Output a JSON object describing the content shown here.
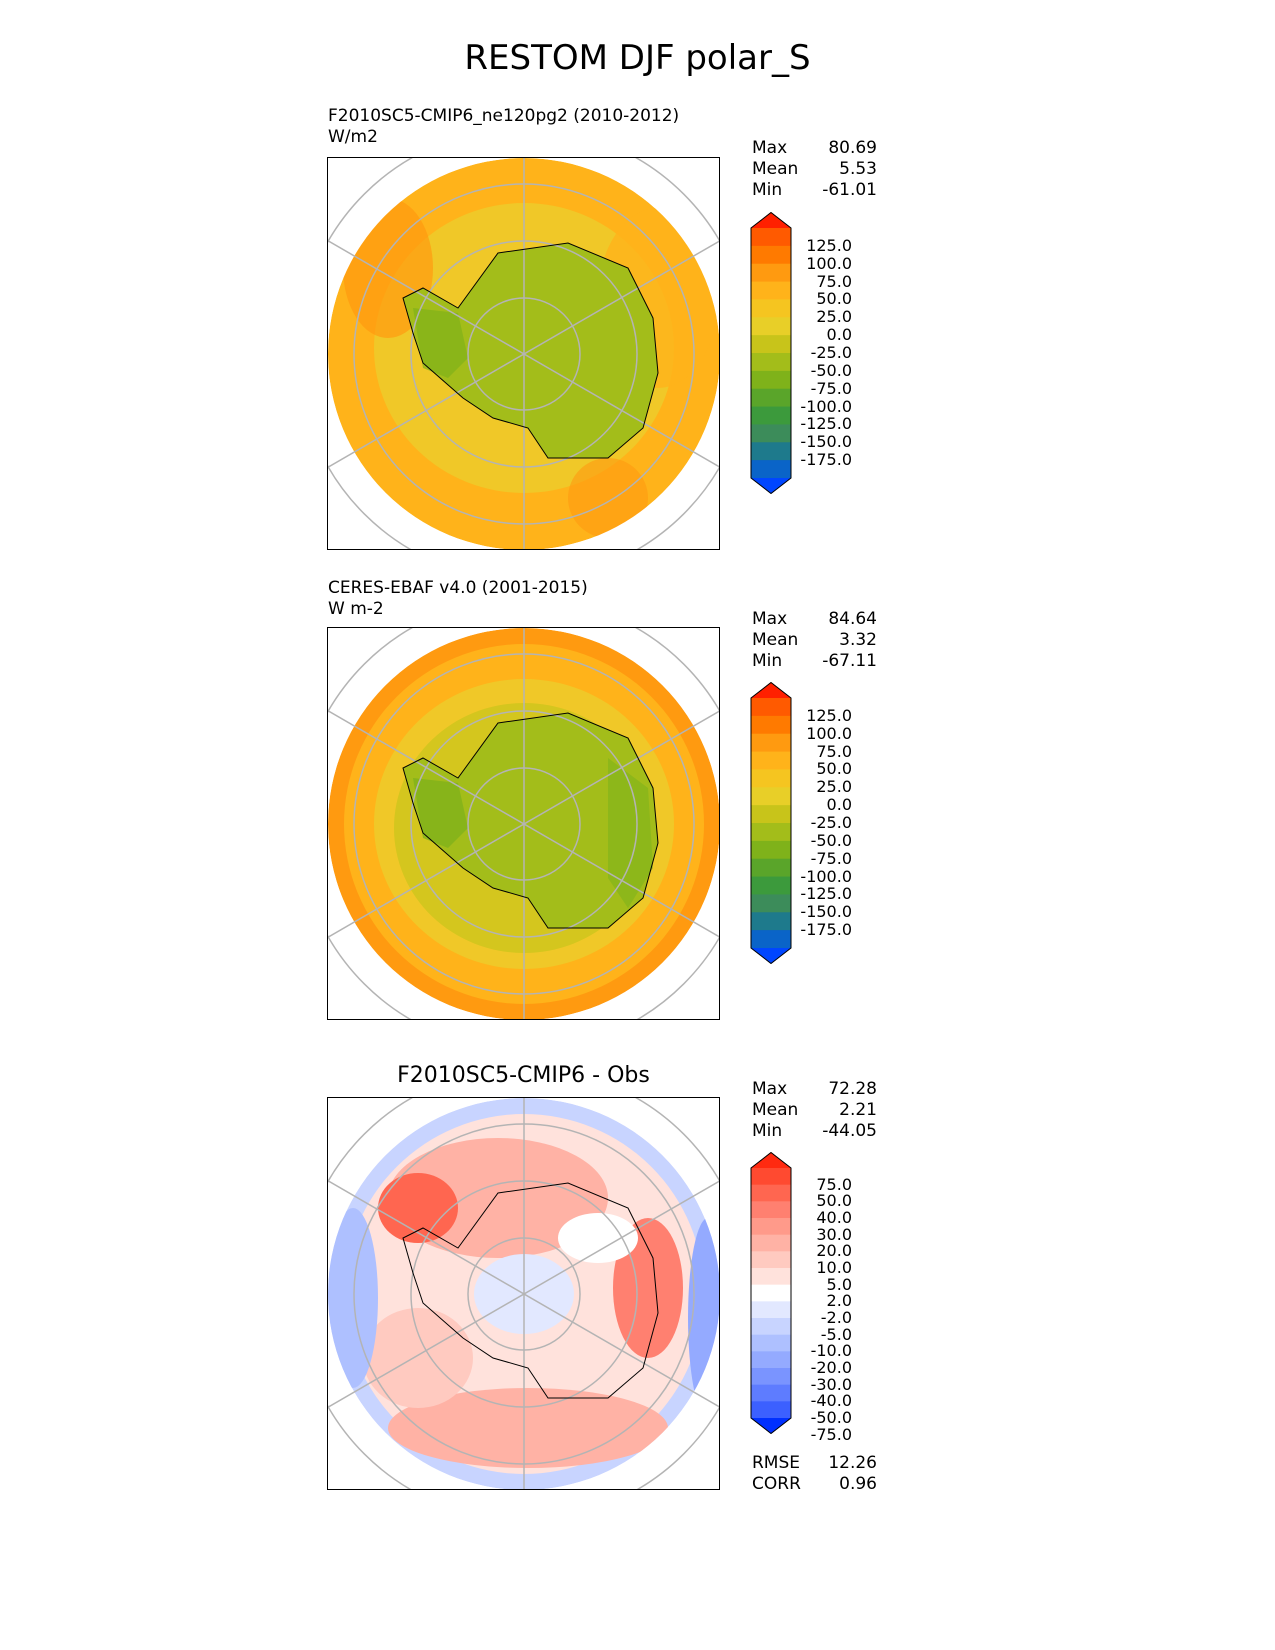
{
  "title": "RESTOM DJF polar_S",
  "panels": [
    {
      "title": "F2010SC5-CMIP6_ne120pg2 (2010-2012)",
      "units": "W/m2",
      "stats": [
        {
          "label": "Max",
          "value": "80.69"
        },
        {
          "label": "Mean",
          "value": "5.53"
        },
        {
          "label": "Min",
          "value": "-61.01"
        }
      ],
      "colorbar": {
        "labels": [
          "125.0",
          "100.0",
          "75.0",
          "50.0",
          "25.0",
          "0.0",
          "-25.0",
          "-50.0",
          "-75.0",
          "-100.0",
          "-125.0",
          "-150.0",
          "-175.0"
        ],
        "colors": [
          "#ff2000",
          "#ff5a00",
          "#ff7a00",
          "#ff9a10",
          "#ffb31a",
          "#f5c520",
          "#e8cf28",
          "#c8c41a",
          "#a3bd1a",
          "#7fb21a",
          "#5aa52a",
          "#3c9a3c",
          "#3c8c5a",
          "#1e7a8c",
          "#0a64c8",
          "#0046ff"
        ]
      }
    },
    {
      "title": "CERES-EBAF v4.0 (2001-2015)",
      "units": "W m-2",
      "stats": [
        {
          "label": "Max",
          "value": "84.64"
        },
        {
          "label": "Mean",
          "value": "3.32"
        },
        {
          "label": "Min",
          "value": "-67.11"
        }
      ],
      "colorbar": {
        "labels": [
          "125.0",
          "100.0",
          "75.0",
          "50.0",
          "25.0",
          "0.0",
          "-25.0",
          "-50.0",
          "-75.0",
          "-100.0",
          "-125.0",
          "-150.0",
          "-175.0"
        ],
        "colors": [
          "#ff2000",
          "#ff5a00",
          "#ff7a00",
          "#ff9a10",
          "#ffb31a",
          "#f5c520",
          "#e8cf28",
          "#c8c41a",
          "#a3bd1a",
          "#7fb21a",
          "#5aa52a",
          "#3c9a3c",
          "#3c8c5a",
          "#1e7a8c",
          "#0a64c8",
          "#0046ff"
        ]
      }
    },
    {
      "title": "F2010SC5-CMIP6 - Obs",
      "units": "",
      "stats": [
        {
          "label": "Max",
          "value": "72.28"
        },
        {
          "label": "Mean",
          "value": "2.21"
        },
        {
          "label": "Min",
          "value": "-44.05"
        }
      ],
      "extra_stats": [
        {
          "label": "RMSE",
          "value": "12.26"
        },
        {
          "label": "CORR",
          "value": "0.96"
        }
      ],
      "colorbar": {
        "labels": [
          "75.0",
          "50.0",
          "40.0",
          "30.0",
          "20.0",
          "10.0",
          "5.0",
          "2.0",
          "-2.0",
          "-5.0",
          "-10.0",
          "-20.0",
          "-30.0",
          "-40.0",
          "-50.0",
          "-75.0"
        ],
        "colors": [
          "#ff2a10",
          "#ff4a30",
          "#ff6650",
          "#ff8070",
          "#ff9a8a",
          "#ffb2a5",
          "#ffcac0",
          "#ffe2dc",
          "#ffffff",
          "#e2e8ff",
          "#c8d4ff",
          "#aec0ff",
          "#94aaff",
          "#7a94ff",
          "#5e7cff",
          "#3c60ff",
          "#0030ff"
        ]
      }
    }
  ]
}
